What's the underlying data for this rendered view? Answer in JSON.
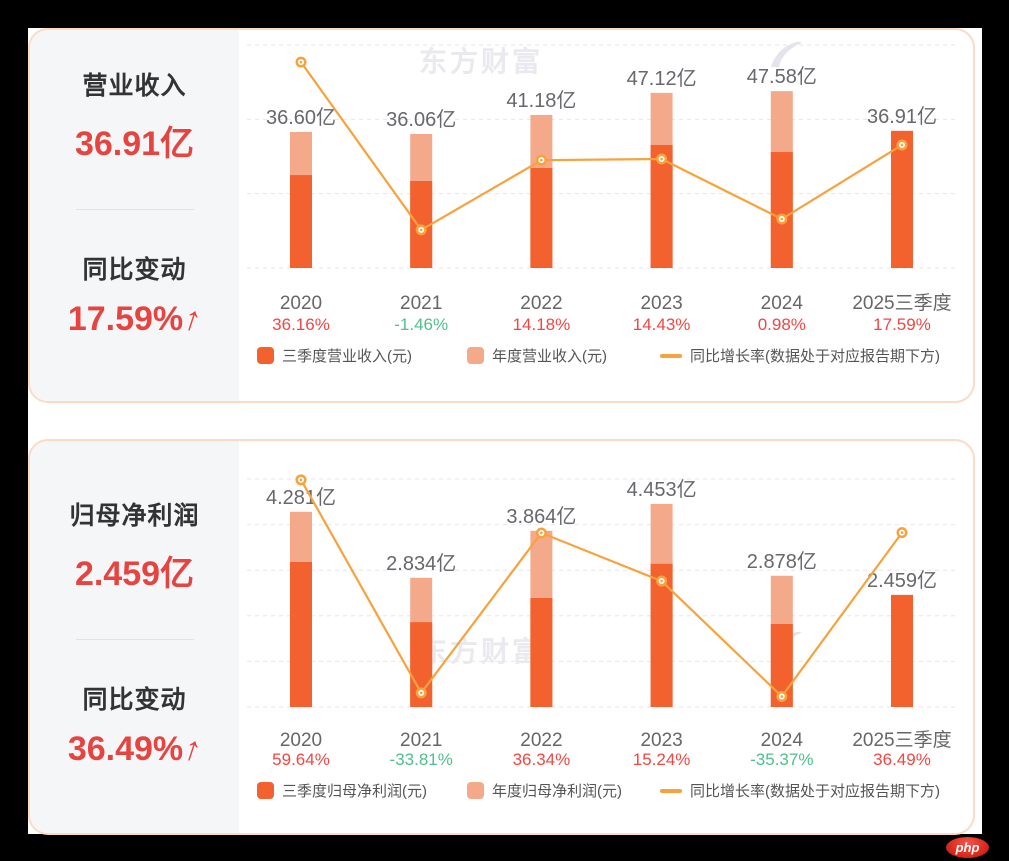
{
  "watermark_text": "东方财富",
  "php_badge": "php",
  "colors": {
    "positive_pct": "#f04743",
    "negative_pct": "#4fc08d",
    "q3_bar": "#f2612e",
    "annual_bar": "#f4aa8a",
    "growth_line": "#f7a23c",
    "big_number_red": "#e64440",
    "card_border": "#fbdac6",
    "panel_bg": "#f5f6f8"
  },
  "cards": [
    {
      "panel": {
        "metric_label": "营业收入",
        "metric_value": "36.91亿",
        "change_label": "同比变动",
        "change_value": "17.59%",
        "arrow": "↑"
      }
    },
    {
      "panel": {
        "metric_label": "归母净利润",
        "metric_value": "2.459亿",
        "change_label": "同比变动",
        "change_value": "36.49%",
        "arrow": "↑"
      }
    }
  ],
  "chart_data": [
    {
      "type": "bar+line",
      "title": "营业收入",
      "categories": [
        "2020",
        "2021",
        "2022",
        "2023",
        "2024",
        "2025三季度"
      ],
      "series": [
        {
          "name": "三季度营业收入(元)",
          "unit": "亿",
          "color": "#f2612e",
          "values": [
            25.0,
            23.4,
            26.9,
            33.1,
            31.2,
            36.91
          ]
        },
        {
          "name": "年度营业收入(元)",
          "unit": "亿",
          "color": "#f4aa8a",
          "values": [
            36.6,
            36.06,
            41.18,
            47.12,
            47.58,
            null
          ]
        }
      ],
      "bar_value_labels": [
        "36.60亿",
        "36.06亿",
        "41.18亿",
        "47.12亿",
        "47.58亿",
        "36.91亿"
      ],
      "line_series": {
        "name": "同比增长率(数据处于对应报告期下方)",
        "color": "#f7a23c",
        "values": [
          36.16,
          -1.46,
          14.18,
          14.43,
          0.98,
          17.59
        ]
      },
      "growth_labels": [
        "36.16%",
        "-1.46%",
        "14.18%",
        "14.43%",
        "0.98%",
        "17.59%"
      ],
      "bar_axis": {
        "min": 0,
        "max": 60
      },
      "line_axis": {
        "min": -10,
        "max": 40
      },
      "grid": "horizontal-dashed",
      "legend_position": "bottom"
    },
    {
      "type": "bar+line",
      "title": "归母净利润",
      "categories": [
        "2020",
        "2021",
        "2022",
        "2023",
        "2024",
        "2025三季度"
      ],
      "series": [
        {
          "name": "三季度归母净利润(元)",
          "unit": "亿",
          "color": "#f2612e",
          "values": [
            3.18,
            1.86,
            2.39,
            3.14,
            1.82,
            2.459
          ]
        },
        {
          "name": "年度归母净利润(元)",
          "unit": "亿",
          "color": "#f4aa8a",
          "values": [
            4.281,
            2.834,
            3.864,
            4.453,
            2.878,
            null
          ]
        }
      ],
      "bar_value_labels": [
        "4.281亿",
        "2.834亿",
        "3.864亿",
        "4.453亿",
        "2.878亿",
        "2.459亿"
      ],
      "line_series": {
        "name": "同比增长率(数据处于对应报告期下方)",
        "color": "#f7a23c",
        "values": [
          59.64,
          -33.81,
          36.34,
          15.24,
          -35.37,
          36.49
        ]
      },
      "growth_labels": [
        "59.64%",
        "-33.81%",
        "36.34%",
        "15.24%",
        "-35.37%",
        "36.49%"
      ],
      "bar_axis": {
        "min": 0,
        "max": 5
      },
      "line_axis": {
        "min": -40,
        "max": 60
      },
      "grid": "horizontal-dashed",
      "legend_position": "bottom"
    }
  ]
}
